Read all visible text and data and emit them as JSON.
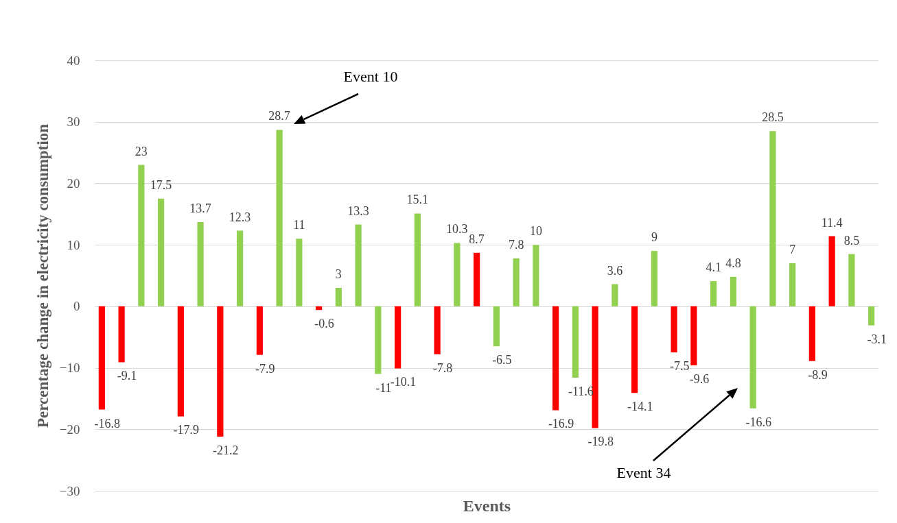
{
  "chart_data": {
    "type": "bar",
    "xlabel": "Events",
    "ylabel": "Percentage change in electricity consumption",
    "categories": [
      null,
      null,
      null,
      null,
      null,
      null,
      null,
      null,
      null,
      null,
      null,
      null,
      null,
      null,
      null,
      null,
      null,
      null,
      null,
      null,
      null,
      null,
      null,
      null,
      null,
      null,
      null,
      null,
      null,
      null,
      null,
      null,
      null,
      null,
      null,
      null,
      null,
      null,
      null,
      null
    ],
    "values": [
      -16.8,
      -9.1,
      23,
      17.5,
      -17.9,
      13.7,
      -21.2,
      12.3,
      -7.9,
      28.7,
      11,
      -0.6,
      3,
      13.3,
      -11,
      -10.1,
      15.1,
      -7.8,
      10.3,
      8.7,
      -6.5,
      7.8,
      10,
      -16.9,
      -11.6,
      -19.8,
      3.6,
      -14.1,
      9,
      -7.5,
      -9.6,
      4.1,
      4.8,
      -16.6,
      28.5,
      7,
      -8.9,
      11.4,
      8.5,
      -3.1
    ],
    "colors": [
      "#ff0000",
      "#ff0000",
      "#92d050",
      "#92d050",
      "#ff0000",
      "#92d050",
      "#ff0000",
      "#92d050",
      "#ff0000",
      "#92d050",
      "#92d050",
      "#ff0000",
      "#92d050",
      "#92d050",
      "#92d050",
      "#ff0000",
      "#92d050",
      "#ff0000",
      "#92d050",
      "#ff0000",
      "#92d050",
      "#92d050",
      "#92d050",
      "#ff0000",
      "#92d050",
      "#ff0000",
      "#92d050",
      "#ff0000",
      "#92d050",
      "#ff0000",
      "#ff0000",
      "#92d050",
      "#92d050",
      "#92d050",
      "#92d050",
      "#92d050",
      "#ff0000",
      "#ff0000",
      "#92d050",
      "#92d050"
    ],
    "ylim": [
      -30,
      40
    ],
    "yticks": [
      -30,
      -20,
      -10,
      0,
      10,
      20,
      30,
      40
    ],
    "grid": true,
    "data_labels": true,
    "annotations": [
      "Event 10",
      "Event 34"
    ]
  }
}
